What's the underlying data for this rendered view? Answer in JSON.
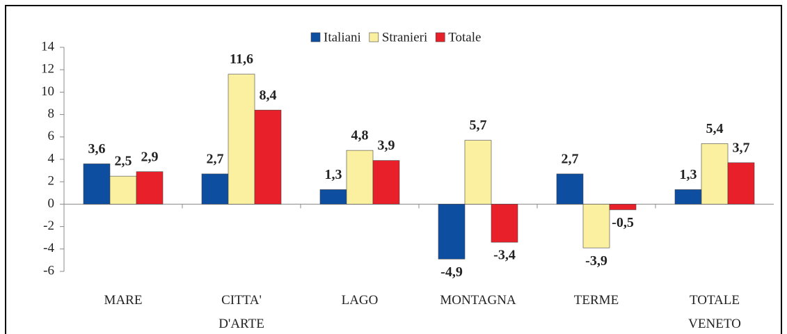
{
  "chart_data": {
    "type": "bar",
    "categories": [
      "MARE",
      "CITTA'\nD'ARTE",
      "LAGO",
      "MONTAGNA",
      "TERME",
      "TOTALE\nVENETO"
    ],
    "series": [
      {
        "name": "Italiani",
        "color": "#0d4ea0",
        "values": [
          3.6,
          2.7,
          1.3,
          -4.9,
          2.7,
          1.3
        ],
        "value_labels": [
          "3,6",
          "2,7",
          "1,3",
          "-4,9",
          "2,7",
          "1,3"
        ]
      },
      {
        "name": "Stranieri",
        "color": "#faf0a0",
        "values": [
          2.5,
          11.6,
          4.8,
          5.7,
          -3.9,
          5.4
        ],
        "value_labels": [
          "2,5",
          "11,6",
          "4,8",
          "5,7",
          "-3,9",
          "5,4"
        ]
      },
      {
        "name": "Totale",
        "color": "#e8202a",
        "values": [
          2.9,
          8.4,
          3.9,
          -3.4,
          -0.5,
          3.7
        ],
        "value_labels": [
          "2,9",
          "8,4",
          "3,9",
          "-3,4",
          "-0,5",
          "3,7"
        ]
      }
    ],
    "ylim": [
      -6,
      14
    ],
    "yticks": [
      -6,
      -4,
      -2,
      0,
      2,
      4,
      6,
      8,
      10,
      12,
      14
    ],
    "grid": false,
    "legend": "top"
  }
}
